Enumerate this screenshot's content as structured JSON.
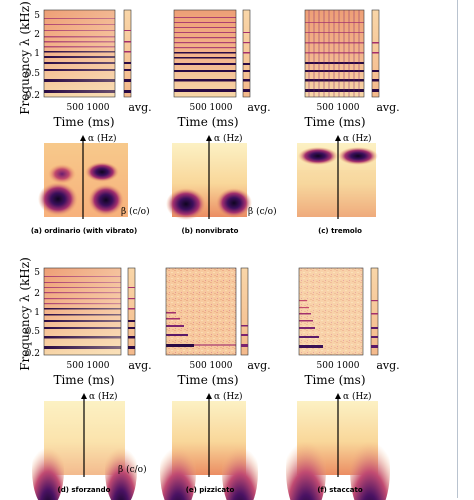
{
  "figure": {
    "y_axis_title": "Frequency λ (kHz)",
    "y_ticks": [
      "5",
      "2",
      "1",
      "0.5",
      "0.2"
    ],
    "x_ticks": "500 1000",
    "x_axis_title": "Time (ms)",
    "avg_label": "avg.",
    "alpha_label": "α (Hz)",
    "beta_label": "β (c/o)",
    "panels": [
      {
        "id": "a",
        "caption": "(a) ordinario (with vibrato)"
      },
      {
        "id": "b",
        "caption": "(b) nonvibrato"
      },
      {
        "id": "c",
        "caption": "(c) tremolo"
      },
      {
        "id": "d",
        "caption": "(d) sforzando"
      },
      {
        "id": "e",
        "caption": "(e) pizzicato"
      },
      {
        "id": "f",
        "caption": "(f) staccato"
      }
    ]
  },
  "colors": {
    "dark": "#1b0a3a",
    "mid": "#b53a79",
    "light": "#fbeec1",
    "warm": "#f4a86b"
  }
}
